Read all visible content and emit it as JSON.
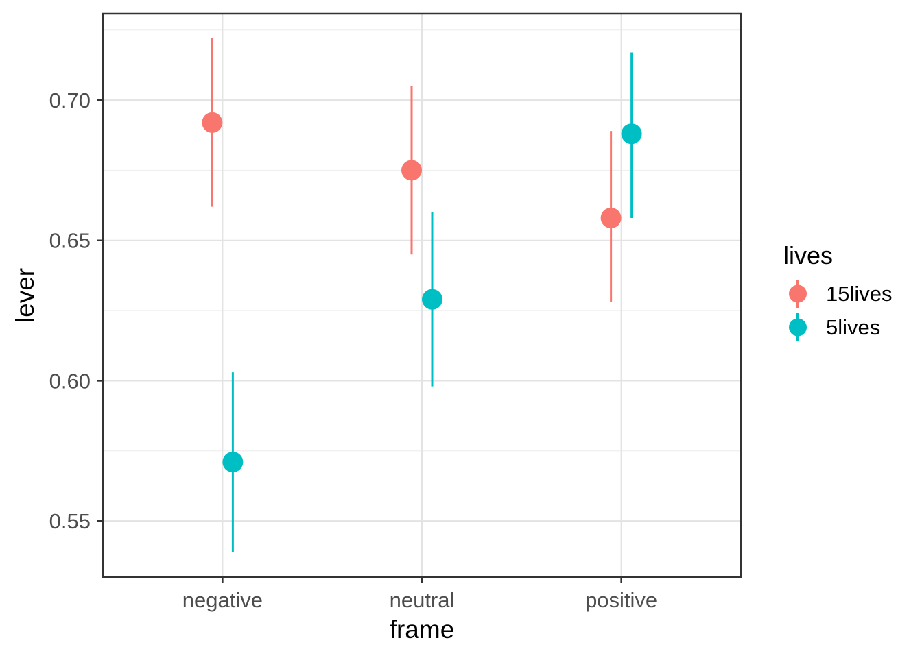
{
  "chart_data": {
    "type": "pointrange-scatter",
    "title": "",
    "xlabel": "frame",
    "ylabel": "lever",
    "categories": [
      "negative",
      "neutral",
      "positive"
    ],
    "series": [
      {
        "name": "15lives",
        "color": "#F8766D",
        "points": [
          {
            "x": "negative",
            "y": 0.692,
            "ymin": 0.662,
            "ymax": 0.722
          },
          {
            "x": "neutral",
            "y": 0.675,
            "ymin": 0.645,
            "ymax": 0.705
          },
          {
            "x": "positive",
            "y": 0.658,
            "ymin": 0.628,
            "ymax": 0.689
          }
        ]
      },
      {
        "name": "5lives",
        "color": "#00BFC4",
        "points": [
          {
            "x": "negative",
            "y": 0.571,
            "ymin": 0.539,
            "ymax": 0.603
          },
          {
            "x": "neutral",
            "y": 0.629,
            "ymin": 0.598,
            "ymax": 0.66
          },
          {
            "x": "positive",
            "y": 0.688,
            "ymin": 0.658,
            "ymax": 0.717
          }
        ]
      }
    ],
    "legend": {
      "title": "lives",
      "position": "right",
      "entries": [
        {
          "label": "15lives",
          "color": "#F8766D"
        },
        {
          "label": "5lives",
          "color": "#00BFC4"
        }
      ]
    },
    "x_axis": {
      "label": "frame",
      "tick_labels": [
        "negative",
        "neutral",
        "positive"
      ]
    },
    "y_axis": {
      "label": "lever",
      "ticks": [
        0.55,
        0.6,
        0.65,
        0.7
      ],
      "tick_labels": [
        "0.55",
        "0.60",
        "0.65",
        "0.70"
      ],
      "minor_ticks": [
        0.575,
        0.625,
        0.675,
        0.725
      ],
      "range": [
        0.53,
        0.7308
      ]
    },
    "grid": true
  },
  "styles": {
    "background": "#FFFFFF",
    "panel_background": "#FFFFFF",
    "panel_border_color": "#333333",
    "grid_major_color": "#E3E3E3",
    "grid_minor_color": "#EFEFEF",
    "tick_mark_color": "#333333",
    "axis_text_color": "#4D4D4D",
    "axis_title_color": "#000000"
  }
}
